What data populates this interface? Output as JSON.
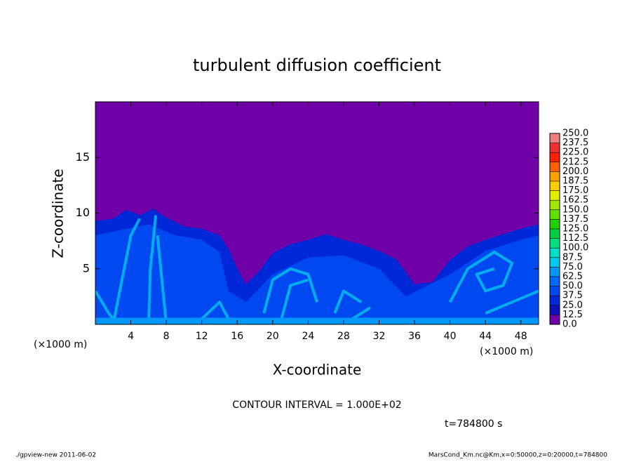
{
  "chart_data": {
    "type": "contour",
    "title": "turbulent diffusion coefficient",
    "xlabel": "X-coordinate",
    "ylabel": "Z-coordinate",
    "xunit": "(×1000 m)",
    "xunit_right": "(×1000 m)",
    "xlim": [
      0,
      50
    ],
    "ylim": [
      0,
      20
    ],
    "xticks": [
      4,
      8,
      12,
      16,
      20,
      24,
      28,
      32,
      36,
      40,
      44,
      48
    ],
    "yticks": [
      5,
      10,
      15
    ],
    "colorbar": {
      "levels": [
        {
          "value": 0,
          "label": "0.0"
        },
        12.5,
        {
          "value": 25,
          "label": "25.0"
        },
        37.5,
        {
          "value": 50,
          "label": "50.0"
        },
        62.5,
        {
          "value": 75,
          "label": "75.0"
        },
        87.5,
        {
          "value": 100,
          "label": "100.0"
        },
        112.5,
        {
          "value": 125,
          "label": "125.0"
        },
        137.5,
        {
          "value": 150,
          "label": "150.0"
        },
        162.5,
        {
          "value": 175,
          "label": "175.0"
        },
        187.5,
        {
          "value": 200,
          "label": "200.0"
        },
        212.5,
        {
          "value": 225,
          "label": "225.0"
        },
        237.5,
        {
          "value": 250,
          "label": "250.0"
        }
      ],
      "colors": [
        "#7000a8",
        "#1010b8",
        "#0028d8",
        "#0048f0",
        "#0068ff",
        "#0098ff",
        "#00c8f0",
        "#00e0c8",
        "#00e080",
        "#00d040",
        "#20d000",
        "#60e000",
        "#a0e800",
        "#e0f000",
        "#ffd000",
        "#ffa000",
        "#ff6000",
        "#ff2000",
        "#f03030",
        "#f08080"
      ]
    },
    "contour_note": "CONTOUR INTERVAL = 1.000E+02",
    "time_label": "t=784800 s",
    "footer_left": "./gpview-new  2011-06-02",
    "footer_right": "MarsCond_Km.nc@Km,x=0:50000,z=0:20000,t=784800"
  }
}
